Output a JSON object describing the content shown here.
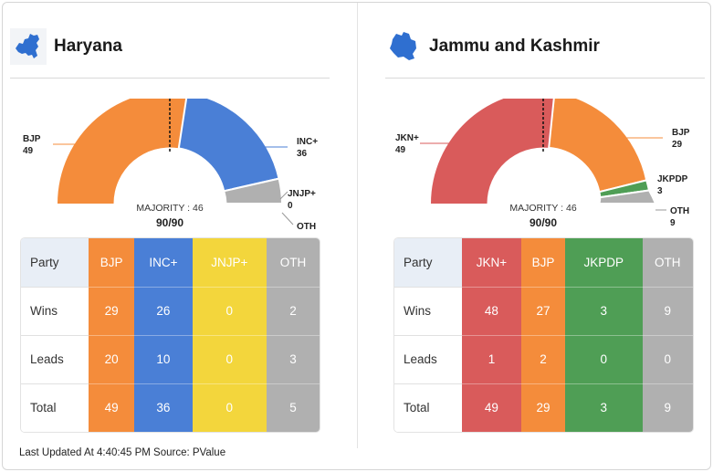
{
  "states": [
    {
      "name": "Haryana",
      "icon": "haryana-map-icon",
      "majority_label": "MAJORITY : 46",
      "seats_label": "90/90",
      "arc_segments": [
        {
          "party": "BJP",
          "seats": 49,
          "color": "#f48c3b"
        },
        {
          "party": "INC+",
          "seats": 36,
          "color": "#4a7fd6"
        },
        {
          "party": "JNJP+",
          "seats": 0,
          "color": "#f3d63c"
        },
        {
          "party": "OTH",
          "seats": 5,
          "color": "#b0b0b0"
        }
      ],
      "arc_labels": [
        {
          "name": "BJP",
          "value": "49"
        },
        {
          "name": "INC+",
          "value": "36"
        },
        {
          "name": "JNJP+",
          "value": "0"
        },
        {
          "name": "OTH",
          "value": ""
        }
      ],
      "table": {
        "header": "Party",
        "columns": [
          {
            "name": "BJP",
            "color": "#f48c3b"
          },
          {
            "name": "INC+",
            "color": "#4a7fd6"
          },
          {
            "name": "JNJP+",
            "color": "#f3d63c"
          },
          {
            "name": "OTH",
            "color": "#b0b0b0"
          }
        ],
        "rows": [
          {
            "label": "Wins",
            "values": [
              "29",
              "26",
              "0",
              "2"
            ]
          },
          {
            "label": "Leads",
            "values": [
              "20",
              "10",
              "0",
              "3"
            ]
          },
          {
            "label": "Total",
            "values": [
              "49",
              "36",
              "0",
              "5"
            ]
          }
        ]
      }
    },
    {
      "name": "Jammu and Kashmir",
      "icon": "jammu-kashmir-map-icon",
      "majority_label": "MAJORITY : 46",
      "seats_label": "90/90",
      "arc_segments": [
        {
          "party": "JKN+",
          "seats": 49,
          "color": "#d95b5b"
        },
        {
          "party": "BJP",
          "seats": 29,
          "color": "#f48c3b"
        },
        {
          "party": "JKPDP",
          "seats": 3,
          "color": "#4f9e55"
        },
        {
          "party": "OTH",
          "seats": 9,
          "color": "#b0b0b0"
        }
      ],
      "arc_labels": [
        {
          "name": "JKN+",
          "value": "49"
        },
        {
          "name": "BJP",
          "value": "29"
        },
        {
          "name": "JKPDP",
          "value": "3"
        },
        {
          "name": "OTH",
          "value": "9"
        }
      ],
      "table": {
        "header": "Party",
        "columns": [
          {
            "name": "JKN+",
            "color": "#d95b5b"
          },
          {
            "name": "BJP",
            "color": "#f48c3b"
          },
          {
            "name": "JKPDP",
            "color": "#4f9e55"
          },
          {
            "name": "OTH",
            "color": "#b0b0b0"
          }
        ],
        "rows": [
          {
            "label": "Wins",
            "values": [
              "48",
              "27",
              "3",
              "9"
            ]
          },
          {
            "label": "Leads",
            "values": [
              "1",
              "2",
              "0",
              "0"
            ]
          },
          {
            "label": "Total",
            "values": [
              "49",
              "29",
              "3",
              "9"
            ]
          }
        ]
      }
    }
  ],
  "footer": "Last Updated At 4:40:45 PM Source: PValue"
}
